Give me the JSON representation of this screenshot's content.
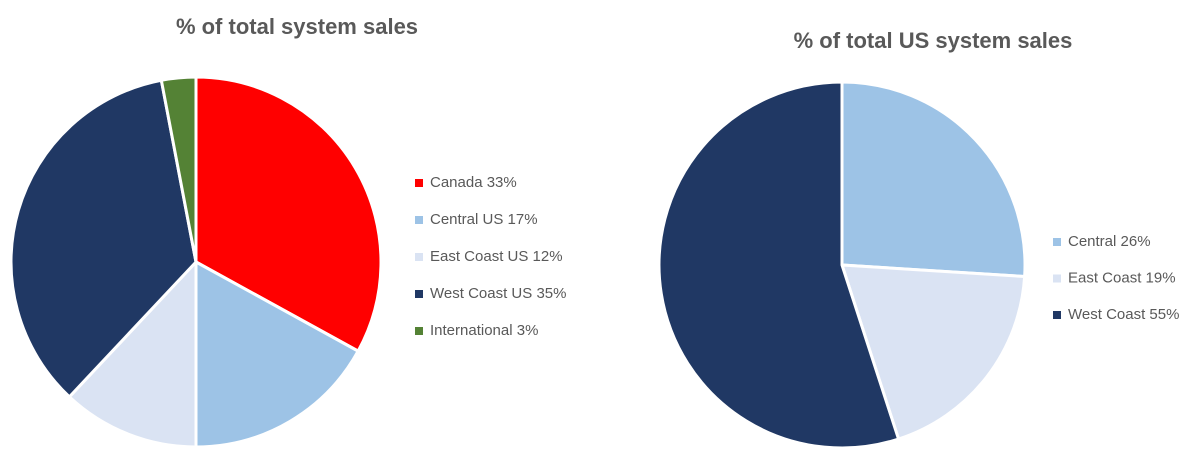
{
  "chart_data": [
    {
      "type": "pie",
      "title": "% of total system sales",
      "categories": [
        "Canada",
        "Central US",
        "East Coast US",
        "West Coast US",
        "International"
      ],
      "values": [
        33,
        17,
        12,
        35,
        3
      ],
      "value_labels": [
        "33%",
        "17%",
        "12%",
        "35%",
        "3%"
      ],
      "colors": [
        "#ff0000",
        "#9dc3e6",
        "#dae3f3",
        "#203864",
        "#548235"
      ],
      "legend": "right"
    },
    {
      "type": "pie",
      "title": "% of total US system sales",
      "categories": [
        "Central",
        "East Coast",
        "West Coast"
      ],
      "values": [
        26,
        19,
        55
      ],
      "value_labels": [
        "26%",
        "19%",
        "55%"
      ],
      "colors": [
        "#9dc3e6",
        "#dae3f3",
        "#203864"
      ],
      "legend": "right"
    }
  ]
}
